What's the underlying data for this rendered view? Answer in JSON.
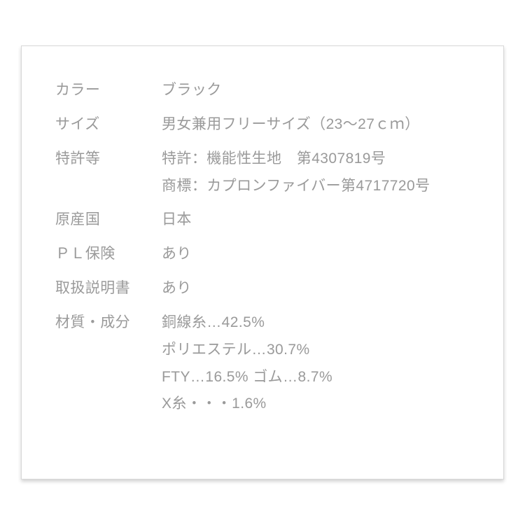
{
  "card": {
    "text_color": "#9a9a9a",
    "background_color": "#ffffff",
    "border_color": "#d8d8d8",
    "fontsize": 21,
    "rows": [
      {
        "label": "カラー",
        "lines": [
          "ブラック"
        ]
      },
      {
        "label": "サイズ",
        "lines": [
          "男女兼用フリーサイズ（23〜27ｃｍ）"
        ]
      },
      {
        "label": "特許等",
        "lines": [
          "特許：機能性生地　第4307819号",
          " 商標：カプロンファイバー第4717720号"
        ]
      },
      {
        "label": "原産国",
        "lines": [
          "日本"
        ]
      },
      {
        "label": "ＰＬ保険",
        "lines": [
          "あり"
        ]
      },
      {
        "label": "取扱説明書",
        "lines": [
          "あり"
        ]
      },
      {
        "label": "材質・成分",
        "lines": [
          "銅線糸…42.5%",
          " ポリエステル…30.7%",
          " FTY…16.5% ゴム…8.7%",
          " X糸・・・1.6%"
        ]
      }
    ]
  }
}
